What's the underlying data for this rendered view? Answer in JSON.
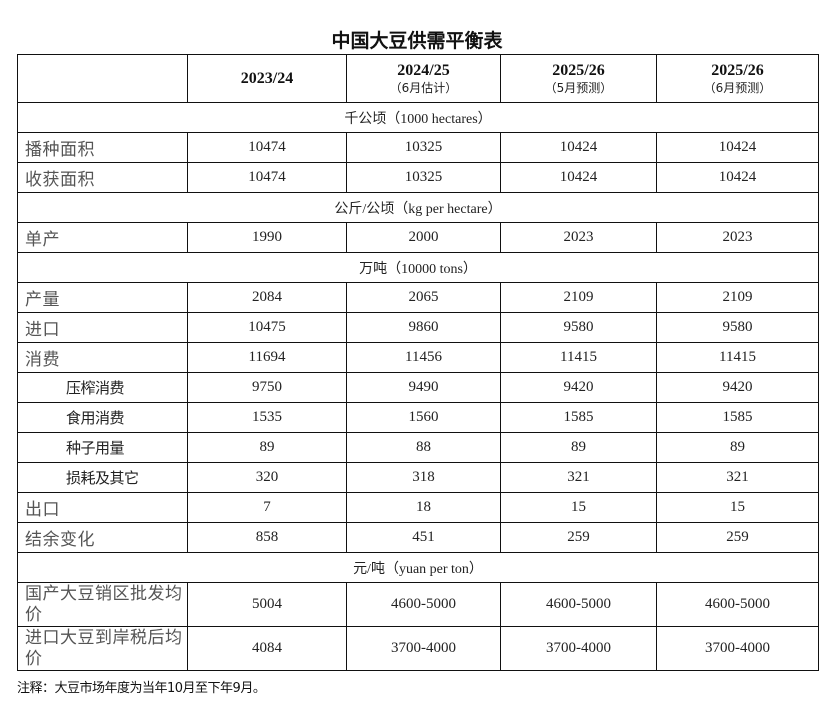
{
  "title": "中国大豆供需平衡表",
  "header": {
    "columns": [
      {
        "year": "2023/24",
        "sub": ""
      },
      {
        "year": "2024/25",
        "sub": "（6月估计）"
      },
      {
        "year": "2025/26",
        "sub": "（5月预测）"
      },
      {
        "year": "2025/26",
        "sub": "（6月预测）"
      }
    ]
  },
  "sections": {
    "area_unit": "千公顷（1000 hectares）",
    "yield_unit": "公斤/公顷（kg per hectare）",
    "volume_unit": "万吨（10000 tons）",
    "price_unit": "元/吨（yuan per ton）"
  },
  "rows": {
    "sown_area": {
      "label": "播种面积",
      "values": [
        "10474",
        "10325",
        "10424",
        "10424"
      ]
    },
    "harvested_area": {
      "label": "收获面积",
      "values": [
        "10474",
        "10325",
        "10424",
        "10424"
      ]
    },
    "yield": {
      "label": "单产",
      "values": [
        "1990",
        "2000",
        "2023",
        "2023"
      ]
    },
    "production": {
      "label": "产量",
      "values": [
        "2084",
        "2065",
        "2109",
        "2109"
      ]
    },
    "imports": {
      "label": "进口",
      "values": [
        "10475",
        "9860",
        "9580",
        "9580"
      ]
    },
    "consumption": {
      "label": "消费",
      "values": [
        "11694",
        "11456",
        "11415",
        "11415"
      ]
    },
    "crush": {
      "label": "压榨消费",
      "values": [
        "9750",
        "9490",
        "9420",
        "9420"
      ]
    },
    "food": {
      "label": "食用消费",
      "values": [
        "1535",
        "1560",
        "1585",
        "1585"
      ]
    },
    "seed": {
      "label": "种子用量",
      "values": [
        "89",
        "88",
        "89",
        "89"
      ]
    },
    "loss_other": {
      "label": "损耗及其它",
      "values": [
        "320",
        "318",
        "321",
        "321"
      ]
    },
    "exports": {
      "label": "出口",
      "values": [
        "7",
        "18",
        "15",
        "15"
      ]
    },
    "balance_change": {
      "label": "结余变化",
      "values": [
        "858",
        "451",
        "259",
        "259"
      ]
    },
    "domestic_price": {
      "label": "国产大豆销区批发均价",
      "values": [
        "5004",
        "4600-5000",
        "4600-5000",
        "4600-5000"
      ]
    },
    "import_price": {
      "label": "进口大豆到岸税后均价",
      "values": [
        "4084",
        "3700-4000",
        "3700-4000",
        "3700-4000"
      ]
    }
  },
  "note": "注释：大豆市场年度为当年10月至下年9月。"
}
